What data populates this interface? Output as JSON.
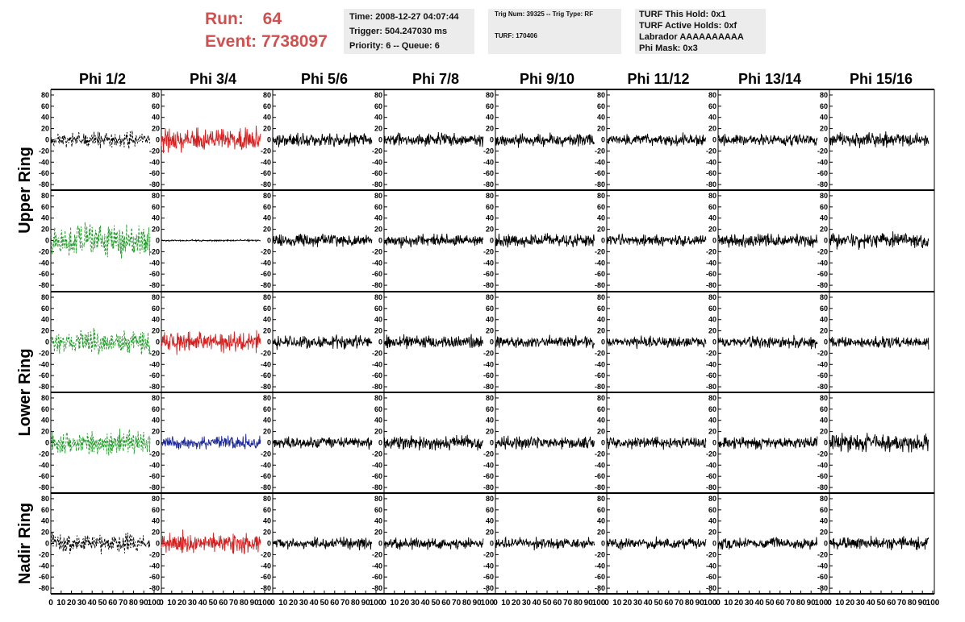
{
  "header": {
    "run_label": "Run:",
    "run_value": "64",
    "event_label": "Event:",
    "event_value": "7738097",
    "time_box": {
      "time": "Time: 2008-12-27 04:07:44",
      "trigger": "Trigger: 504.247030 ms",
      "priority": "Priority: 6 -- Queue: 6"
    },
    "trig_box": {
      "trig_line": "Trig Num: 39325 -- Trig Type: RF",
      "turf_line": "TURF: 170406"
    },
    "turf_box": {
      "this_hold": "TURF This Hold: 0x1",
      "active_holds": "TURF Active Holds: 0xf",
      "labrador": "Labrador AAAAAAAAAA",
      "phi_mask": "Phi Mask: 0x3"
    }
  },
  "chart_data": {
    "type": "line",
    "title": "",
    "columns": [
      "Phi 1/2",
      "Phi 3/4",
      "Phi 5/6",
      "Phi 7/8",
      "Phi 9/10",
      "Phi 11/12",
      "Phi 13/14",
      "Phi 15/16"
    ],
    "ring_labels": [
      {
        "label": "Upper Ring",
        "rows": [
          0,
          1
        ]
      },
      {
        "label": "Lower Ring",
        "rows": [
          2,
          3
        ]
      },
      {
        "label": "Nadir Ring",
        "rows": [
          4
        ]
      }
    ],
    "xlim": [
      0,
      100
    ],
    "ylim": [
      -90,
      90
    ],
    "x_ticks": [
      "0",
      "10",
      "20",
      "30",
      "40",
      "50",
      "60",
      "70",
      "80",
      "90",
      "100"
    ],
    "y_ticks": [
      "80",
      "60",
      "40",
      "20",
      "0",
      "-20",
      "-40",
      "-60",
      "-80"
    ],
    "colors": {
      "black": "#000000",
      "red": "#d42020",
      "green": "#22992a",
      "blue": "#1e2a9a",
      "header_red": "#d05050",
      "box_gray": "#ececec"
    },
    "waveform_samples_per_ns": 2.6,
    "waveform_x_range": [
      0,
      96
    ],
    "panels": [
      [
        {
          "color": "black",
          "dashed": true,
          "amplitude": 18,
          "seed": 11
        },
        {
          "color": "red",
          "dashed": false,
          "amplitude": 27,
          "seed": 12
        },
        {
          "color": "black",
          "dashed": false,
          "amplitude": 16,
          "seed": 13
        },
        {
          "color": "black",
          "dashed": false,
          "amplitude": 16,
          "seed": 14
        },
        {
          "color": "black",
          "dashed": false,
          "amplitude": 16,
          "seed": 15
        },
        {
          "color": "black",
          "dashed": false,
          "amplitude": 14,
          "seed": 16
        },
        {
          "color": "black",
          "dashed": false,
          "amplitude": 14,
          "seed": 17
        },
        {
          "color": "black",
          "dashed": false,
          "amplitude": 18,
          "seed": 18
        }
      ],
      [
        {
          "color": "green",
          "dashed": true,
          "amplitude": 42,
          "seed": 21
        },
        {
          "color": "black",
          "dashed": false,
          "amplitude": 2,
          "seed": 22
        },
        {
          "color": "black",
          "dashed": false,
          "amplitude": 16,
          "seed": 23
        },
        {
          "color": "black",
          "dashed": false,
          "amplitude": 16,
          "seed": 24
        },
        {
          "color": "black",
          "dashed": false,
          "amplitude": 16,
          "seed": 25
        },
        {
          "color": "black",
          "dashed": false,
          "amplitude": 14,
          "seed": 26
        },
        {
          "color": "black",
          "dashed": false,
          "amplitude": 16,
          "seed": 27
        },
        {
          "color": "black",
          "dashed": false,
          "amplitude": 18,
          "seed": 28
        }
      ],
      [
        {
          "color": "green",
          "dashed": true,
          "amplitude": 28,
          "seed": 31
        },
        {
          "color": "red",
          "dashed": false,
          "amplitude": 27,
          "seed": 32
        },
        {
          "color": "black",
          "dashed": false,
          "amplitude": 16,
          "seed": 33
        },
        {
          "color": "black",
          "dashed": false,
          "amplitude": 16,
          "seed": 34
        },
        {
          "color": "black",
          "dashed": false,
          "amplitude": 14,
          "seed": 35
        },
        {
          "color": "black",
          "dashed": false,
          "amplitude": 14,
          "seed": 36
        },
        {
          "color": "black",
          "dashed": false,
          "amplitude": 14,
          "seed": 37
        },
        {
          "color": "black",
          "dashed": false,
          "amplitude": 14,
          "seed": 38
        }
      ],
      [
        {
          "color": "green",
          "dashed": true,
          "amplitude": 28,
          "seed": 41
        },
        {
          "color": "blue",
          "dashed": false,
          "amplitude": 17,
          "seed": 42
        },
        {
          "color": "black",
          "dashed": false,
          "amplitude": 14,
          "seed": 43
        },
        {
          "color": "black",
          "dashed": false,
          "amplitude": 16,
          "seed": 44
        },
        {
          "color": "black",
          "dashed": false,
          "amplitude": 16,
          "seed": 45
        },
        {
          "color": "black",
          "dashed": false,
          "amplitude": 14,
          "seed": 46
        },
        {
          "color": "black",
          "dashed": false,
          "amplitude": 14,
          "seed": 47
        },
        {
          "color": "black",
          "dashed": false,
          "amplitude": 22,
          "seed": 48
        }
      ],
      [
        {
          "color": "black",
          "dashed": true,
          "amplitude": 22,
          "seed": 51
        },
        {
          "color": "red",
          "dashed": false,
          "amplitude": 28,
          "seed": 52
        },
        {
          "color": "black",
          "dashed": false,
          "amplitude": 14,
          "seed": 53
        },
        {
          "color": "black",
          "dashed": false,
          "amplitude": 14,
          "seed": 54
        },
        {
          "color": "black",
          "dashed": false,
          "amplitude": 14,
          "seed": 55
        },
        {
          "color": "black",
          "dashed": false,
          "amplitude": 14,
          "seed": 56
        },
        {
          "color": "black",
          "dashed": false,
          "amplitude": 14,
          "seed": 57
        },
        {
          "color": "black",
          "dashed": false,
          "amplitude": 16,
          "seed": 58
        }
      ]
    ]
  }
}
